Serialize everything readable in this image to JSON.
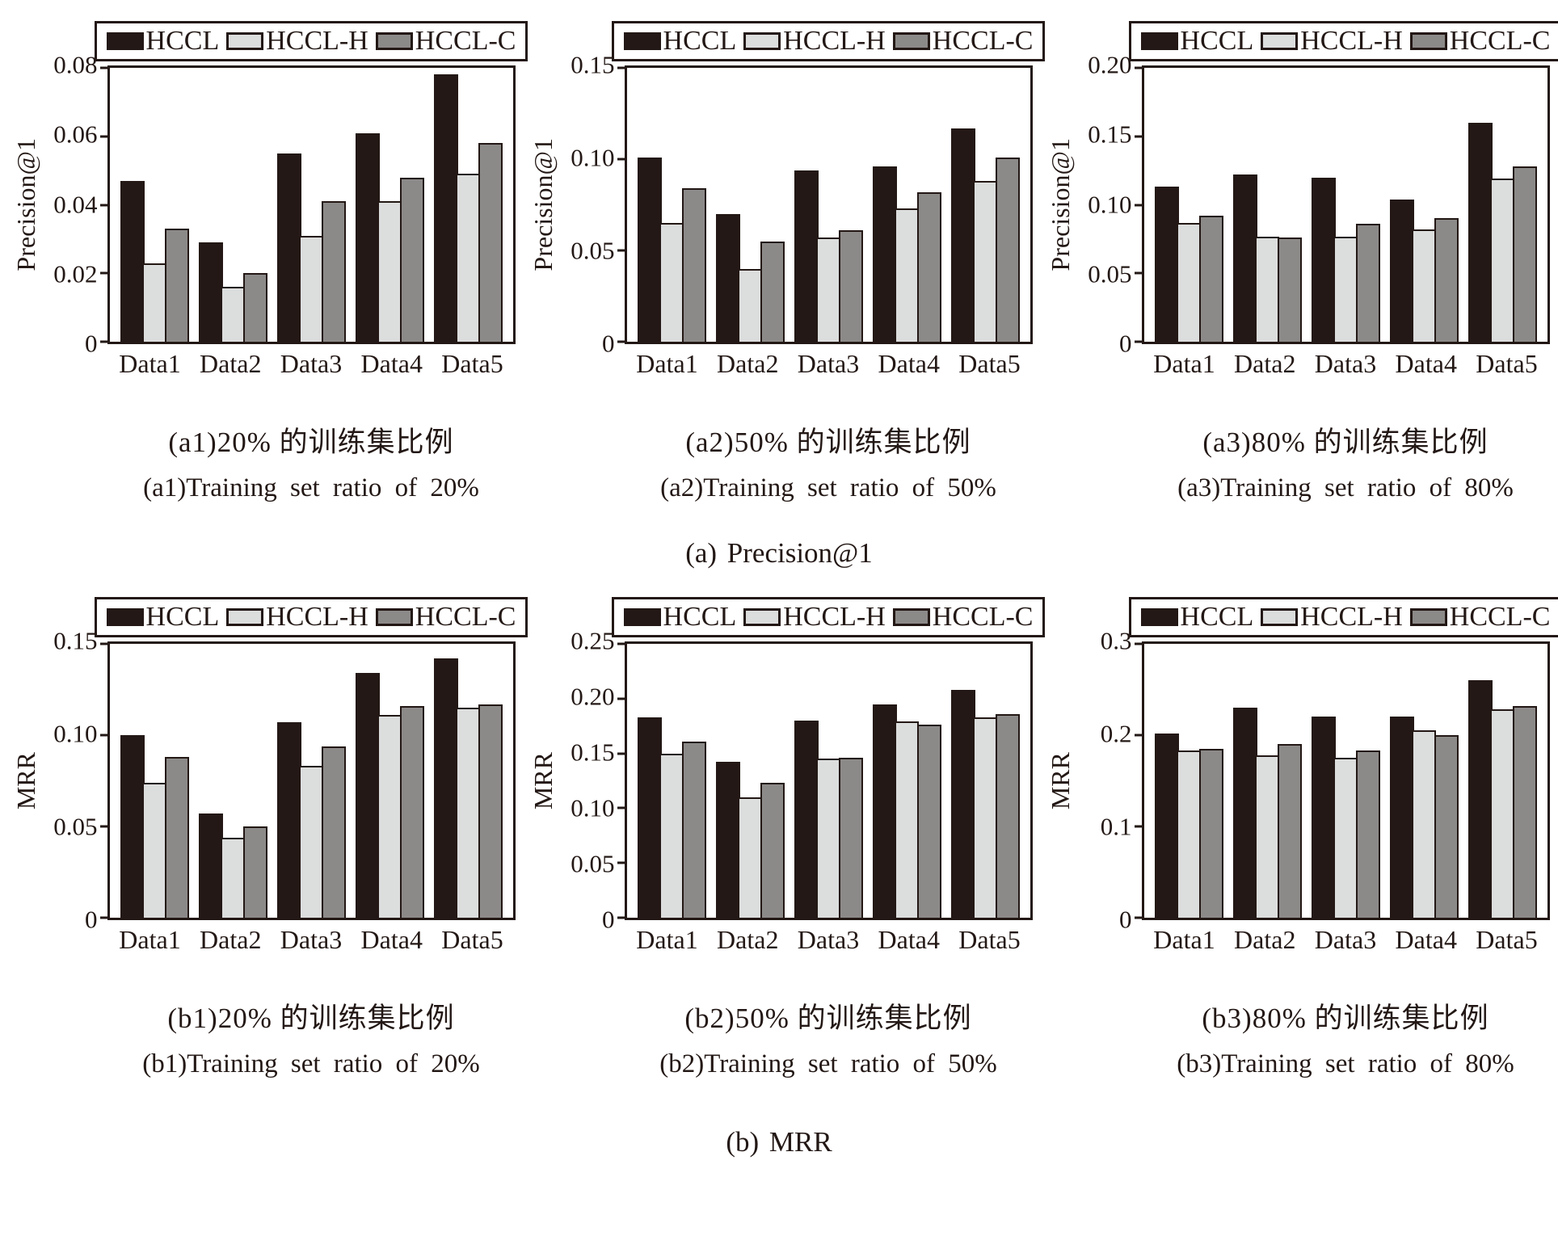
{
  "figure": {
    "row_captions": [
      {
        "id": "a",
        "text": "(a) Precision@1"
      },
      {
        "id": "b",
        "text": "(b) MRR"
      }
    ]
  },
  "legend": {
    "position": "top",
    "entries": [
      {
        "label": "HCCL",
        "color": "#231815"
      },
      {
        "label": "HCCL-H",
        "color": "#dcdddd"
      },
      {
        "label": "HCCL-C",
        "color": "#8c8a89"
      }
    ]
  },
  "categories": [
    "Data1",
    "Data2",
    "Data3",
    "Data4",
    "Data5"
  ],
  "chart_data": [
    {
      "id": "a1",
      "type": "bar",
      "grid": false,
      "ylabel": "Precision@1",
      "xlabel": "",
      "ylim": [
        0,
        0.08
      ],
      "yticks": [
        {
          "label": "0.08",
          "value": 0.08
        },
        {
          "label": "0.06",
          "value": 0.06
        },
        {
          "label": "0.04",
          "value": 0.04
        },
        {
          "label": "0.02",
          "value": 0.02
        },
        {
          "label": "0",
          "value": 0
        }
      ],
      "categories": [
        "Data1",
        "Data2",
        "Data3",
        "Data4",
        "Data5"
      ],
      "series": [
        {
          "name": "HCCL",
          "values": [
            0.047,
            0.029,
            0.055,
            0.061,
            0.078
          ]
        },
        {
          "name": "HCCL-H",
          "values": [
            0.023,
            0.016,
            0.031,
            0.041,
            0.049
          ]
        },
        {
          "name": "HCCL-C",
          "values": [
            0.033,
            0.02,
            0.041,
            0.048,
            0.058
          ]
        }
      ],
      "caption_zh": "(a1)20% 的训练集比例",
      "caption_en": "(a1)Training set ratio of 20%"
    },
    {
      "id": "a2",
      "type": "bar",
      "grid": false,
      "ylabel": "Precision@1",
      "xlabel": "",
      "ylim": [
        0,
        0.15
      ],
      "yticks": [
        {
          "label": "0.15",
          "value": 0.15
        },
        {
          "label": "0.10",
          "value": 0.1
        },
        {
          "label": "0.05",
          "value": 0.05
        },
        {
          "label": "0",
          "value": 0
        }
      ],
      "categories": [
        "Data1",
        "Data2",
        "Data3",
        "Data4",
        "Data5"
      ],
      "series": [
        {
          "name": "HCCL",
          "values": [
            0.101,
            0.07,
            0.094,
            0.096,
            0.117
          ]
        },
        {
          "name": "HCCL-H",
          "values": [
            0.065,
            0.04,
            0.057,
            0.073,
            0.088
          ]
        },
        {
          "name": "HCCL-C",
          "values": [
            0.084,
            0.055,
            0.061,
            0.082,
            0.101
          ]
        }
      ],
      "caption_zh": "(a2)50% 的训练集比例",
      "caption_en": "(a2)Training set ratio of 50%"
    },
    {
      "id": "a3",
      "type": "bar",
      "grid": false,
      "ylabel": "Precision@1",
      "xlabel": "",
      "ylim": [
        0,
        0.2
      ],
      "yticks": [
        {
          "label": "0.20",
          "value": 0.2
        },
        {
          "label": "0.15",
          "value": 0.15
        },
        {
          "label": "0.10",
          "value": 0.1
        },
        {
          "label": "0.05",
          "value": 0.05
        },
        {
          "label": "0",
          "value": 0
        }
      ],
      "categories": [
        "Data1",
        "Data2",
        "Data3",
        "Data4",
        "Data5"
      ],
      "series": [
        {
          "name": "HCCL",
          "values": [
            0.113,
            0.122,
            0.12,
            0.104,
            0.16
          ]
        },
        {
          "name": "HCCL-H",
          "values": [
            0.087,
            0.077,
            0.077,
            0.082,
            0.119
          ]
        },
        {
          "name": "HCCL-C",
          "values": [
            0.092,
            0.076,
            0.086,
            0.09,
            0.128
          ]
        }
      ],
      "caption_zh": "(a3)80% 的训练集比例",
      "caption_en": "(a3)Training set ratio of 80%"
    },
    {
      "id": "b1",
      "type": "bar",
      "grid": false,
      "ylabel": "MRR",
      "xlabel": "",
      "ylim": [
        0,
        0.15
      ],
      "yticks": [
        {
          "label": "0.15",
          "value": 0.15
        },
        {
          "label": "0.10",
          "value": 0.1
        },
        {
          "label": "0.05",
          "value": 0.05
        },
        {
          "label": "0",
          "value": 0
        }
      ],
      "categories": [
        "Data1",
        "Data2",
        "Data3",
        "Data4",
        "Data5"
      ],
      "series": [
        {
          "name": "HCCL",
          "values": [
            0.1,
            0.057,
            0.107,
            0.134,
            0.142
          ]
        },
        {
          "name": "HCCL-H",
          "values": [
            0.074,
            0.044,
            0.083,
            0.111,
            0.115
          ]
        },
        {
          "name": "HCCL-C",
          "values": [
            0.088,
            0.05,
            0.094,
            0.116,
            0.117
          ]
        }
      ],
      "caption_zh": "(b1)20% 的训练集比例",
      "caption_en": "(b1)Training set ratio of 20%"
    },
    {
      "id": "b2",
      "type": "bar",
      "grid": false,
      "ylabel": "MRR",
      "xlabel": "",
      "ylim": [
        0,
        0.25
      ],
      "yticks": [
        {
          "label": "0.25",
          "value": 0.25
        },
        {
          "label": "0.20",
          "value": 0.2
        },
        {
          "label": "0.15",
          "value": 0.15
        },
        {
          "label": "0.10",
          "value": 0.1
        },
        {
          "label": "0.05",
          "value": 0.05
        },
        {
          "label": "0",
          "value": 0
        }
      ],
      "categories": [
        "Data1",
        "Data2",
        "Data3",
        "Data4",
        "Data5"
      ],
      "series": [
        {
          "name": "HCCL",
          "values": [
            0.183,
            0.142,
            0.18,
            0.195,
            0.208
          ]
        },
        {
          "name": "HCCL-H",
          "values": [
            0.15,
            0.11,
            0.145,
            0.179,
            0.183
          ]
        },
        {
          "name": "HCCL-C",
          "values": [
            0.161,
            0.123,
            0.146,
            0.176,
            0.186
          ]
        }
      ],
      "caption_zh": "(b2)50% 的训练集比例",
      "caption_en": "(b2)Training set ratio of 50%"
    },
    {
      "id": "b3",
      "type": "bar",
      "grid": false,
      "ylabel": "MRR",
      "xlabel": "",
      "ylim": [
        0,
        0.3
      ],
      "yticks": [
        {
          "label": "0.3",
          "value": 0.3
        },
        {
          "label": "0.2",
          "value": 0.2
        },
        {
          "label": "0.1",
          "value": 0.1
        },
        {
          "label": "0",
          "value": 0
        }
      ],
      "categories": [
        "Data1",
        "Data2",
        "Data3",
        "Data4",
        "Data5"
      ],
      "series": [
        {
          "name": "HCCL",
          "values": [
            0.202,
            0.23,
            0.22,
            0.22,
            0.26
          ]
        },
        {
          "name": "HCCL-H",
          "values": [
            0.183,
            0.178,
            0.175,
            0.205,
            0.228
          ]
        },
        {
          "name": "HCCL-C",
          "values": [
            0.185,
            0.19,
            0.183,
            0.2,
            0.232
          ]
        }
      ],
      "caption_zh": "(b3)80% 的训练集比例",
      "caption_en": "(b3)Training set ratio of 80%"
    }
  ]
}
